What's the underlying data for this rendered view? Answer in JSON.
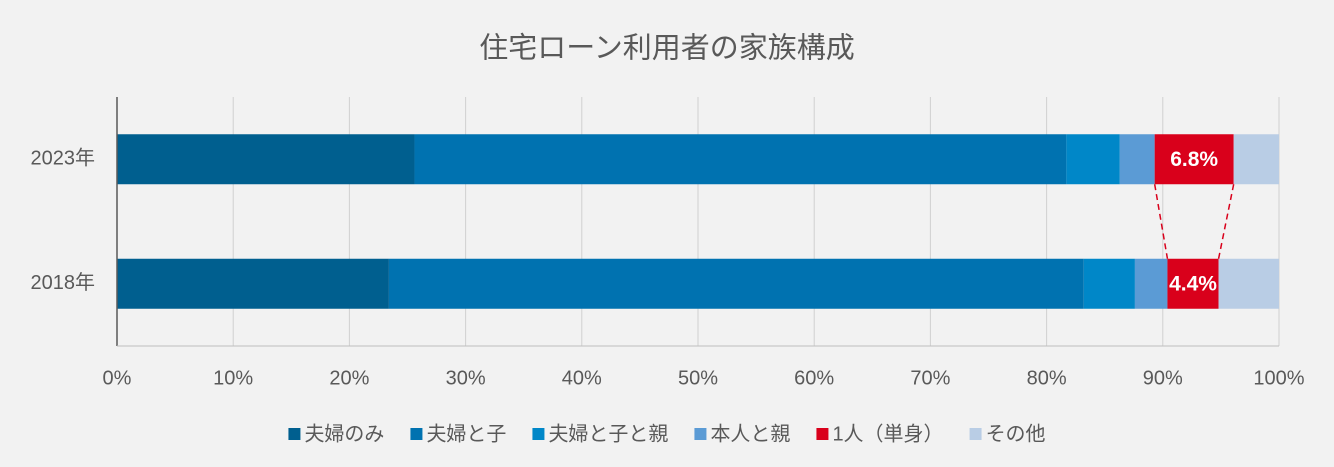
{
  "chart_data": {
    "type": "stacked-bar-horizontal",
    "title": "住宅ローン利用者の家族構成",
    "categories": [
      "2023年",
      "2018年"
    ],
    "series": [
      {
        "name": "夫婦のみ",
        "color": "#005f8f",
        "values": [
          25.6,
          23.4
        ]
      },
      {
        "name": "夫婦と子",
        "color": "#0072b0",
        "values": [
          56.1,
          59.8
        ]
      },
      {
        "name": "夫婦と子と親",
        "color": "#0087c8",
        "values": [
          4.6,
          4.4
        ]
      },
      {
        "name": "本人と親",
        "color": "#5b9bd5",
        "values": [
          3.0,
          2.8
        ]
      },
      {
        "name": "1人（単身）",
        "color": "#d9001b",
        "values": [
          6.8,
          4.4
        ],
        "value_labels": [
          "6.8%",
          "4.4%"
        ]
      },
      {
        "name": "その他",
        "color": "#b9cde5",
        "values": [
          3.9,
          5.2
        ]
      }
    ],
    "xlim": [
      0,
      100
    ],
    "xticks": [
      {
        "value": 0,
        "label": "0%"
      },
      {
        "value": 10,
        "label": "10%"
      },
      {
        "value": 20,
        "label": "20%"
      },
      {
        "value": 30,
        "label": "30%"
      },
      {
        "value": 40,
        "label": "40%"
      },
      {
        "value": 50,
        "label": "50%"
      },
      {
        "value": 60,
        "label": "60%"
      },
      {
        "value": 70,
        "label": "70%"
      },
      {
        "value": 80,
        "label": "80%"
      },
      {
        "value": 90,
        "label": "90%"
      },
      {
        "value": 100,
        "label": "100%"
      }
    ],
    "grid": true,
    "legend": "bottom"
  }
}
